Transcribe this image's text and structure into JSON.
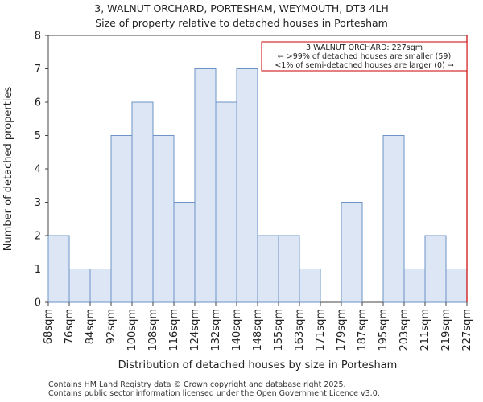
{
  "title_line1": "3, WALNUT ORCHARD, PORTESHAM, WEYMOUTH, DT3 4LH",
  "title_line2": "Size of property relative to detached houses in Portesham",
  "footer_line1": "Contains HM Land Registry data © Crown copyright and database right 2025.",
  "footer_line2": "Contains public sector information licensed under the Open Government Licence v3.0.",
  "chart_data": {
    "type": "bar",
    "title": "Size of property relative to detached houses in Portesham",
    "xlabel": "Distribution of detached houses by size in Portesham",
    "ylabel": "Number of detached properties",
    "bin_edges": [
      "68sqm",
      "76sqm",
      "84sqm",
      "92sqm",
      "100sqm",
      "108sqm",
      "116sqm",
      "124sqm",
      "132sqm",
      "140sqm",
      "148sqm",
      "155sqm",
      "163sqm",
      "171sqm",
      "179sqm",
      "187sqm",
      "195sqm",
      "203sqm",
      "211sqm",
      "219sqm",
      "227sqm"
    ],
    "values": [
      2,
      1,
      1,
      5,
      6,
      5,
      3,
      7,
      6,
      7,
      2,
      2,
      1,
      0,
      3,
      0,
      5,
      1,
      2,
      1
    ],
    "ylim": [
      0,
      8
    ],
    "yticks": [
      0,
      1,
      2,
      3,
      4,
      5,
      6,
      7,
      8
    ],
    "bar_color": "#dce6f4",
    "bar_edge_color": "#6d93c7",
    "marker": {
      "value_label": "227sqm",
      "color": "#cc0000",
      "annotation": [
        "3 WALNUT ORCHARD: 227sqm",
        "← >99% of detached houses are smaller (59)",
        "<1% of semi-detached houses are larger (0) →"
      ]
    }
  }
}
